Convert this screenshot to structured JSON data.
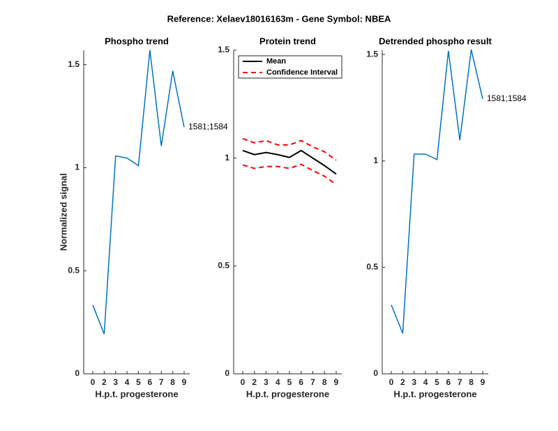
{
  "title": "Reference:  Xelaev18016163m - Gene Symbol:  NBEA",
  "chart_data": [
    {
      "type": "line",
      "title": "Phospho trend",
      "xlabel": "H.p.t. progesterone",
      "ylabel": "Normalized signal",
      "categories": [
        "0",
        "2",
        "3",
        "4",
        "5",
        "6",
        "7",
        "8",
        "9"
      ],
      "series": [
        {
          "color": "#0072bd",
          "values": [
            0.334,
            0.193,
            1.057,
            1.047,
            1.01,
            1.571,
            1.105,
            1.47,
            1.196
          ]
        }
      ],
      "annotation": "1581;1584",
      "ylim": [
        0,
        1.57
      ],
      "yticks": [
        0,
        0.5,
        1,
        1.5
      ]
    },
    {
      "type": "band",
      "title": "Protein trend",
      "xlabel": "H.p.t. progesterone",
      "categories": [
        "0",
        "2",
        "3",
        "4",
        "5",
        "6",
        "7",
        "8",
        "9"
      ],
      "series": [
        {
          "name": "Mean",
          "color": "#000000",
          "values": [
            1.035,
            1.016,
            1.026,
            1.016,
            1.003,
            1.035,
            1.0,
            0.965,
            0.926
          ]
        },
        {
          "name": "Confidence Interval",
          "color": "#ff0000",
          "dash": true,
          "upper": [
            1.09,
            1.071,
            1.081,
            1.061,
            1.061,
            1.081,
            1.052,
            1.029,
            0.99
          ],
          "lower": [
            0.968,
            0.952,
            0.961,
            0.961,
            0.952,
            0.971,
            0.942,
            0.916,
            0.877
          ]
        }
      ],
      "legend": "upper left",
      "ylim": [
        0,
        1.5
      ],
      "yticks": [
        0,
        0.5,
        1,
        1.5
      ]
    },
    {
      "type": "line",
      "title": "Detrended phospho result",
      "xlabel": "H.p.t. progesterone",
      "categories": [
        "0",
        "2",
        "3",
        "4",
        "5",
        "6",
        "7",
        "8",
        "9"
      ],
      "series": [
        {
          "color": "#0072bd",
          "values": [
            0.324,
            0.19,
            1.032,
            1.032,
            1.006,
            1.517,
            1.097,
            1.523,
            1.291
          ]
        }
      ],
      "annotation": "1581;1584",
      "ylim": [
        0,
        1.52
      ],
      "yticks": [
        0,
        0.5,
        1,
        1.5
      ]
    }
  ]
}
